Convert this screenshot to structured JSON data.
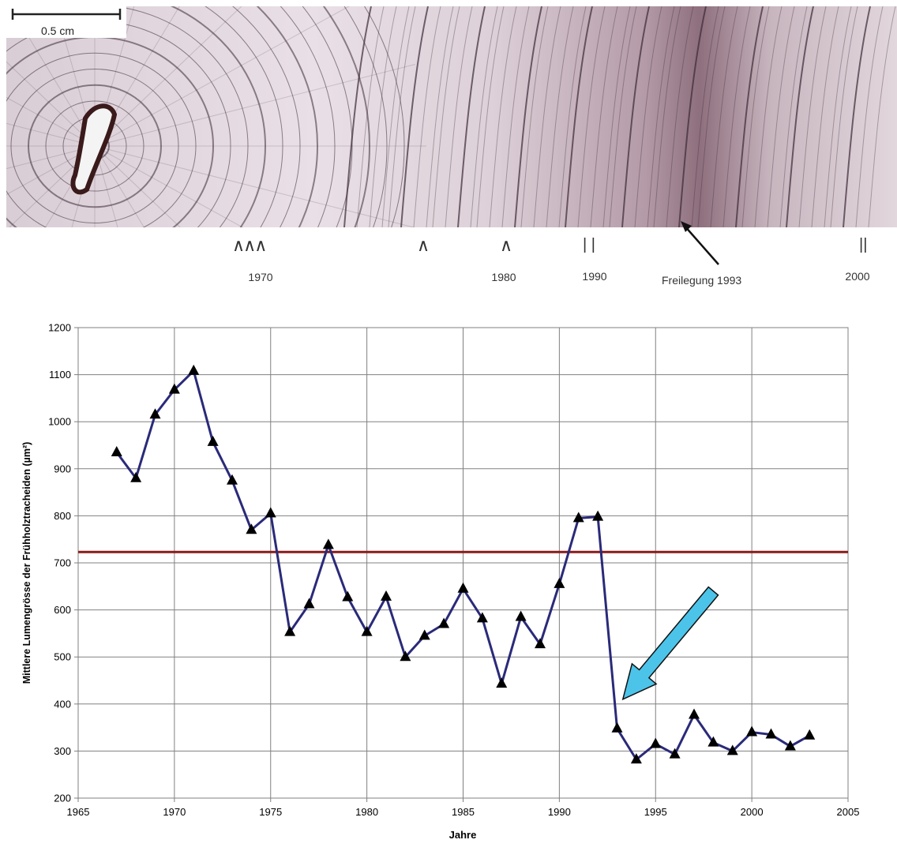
{
  "wood_image": {
    "scale_label": "0.5 cm",
    "year_marks": [
      {
        "label": "1970",
        "symbol": "∧∧∧"
      },
      {
        "label": "",
        "symbol": "∧"
      },
      {
        "label": "1980",
        "symbol": "∧"
      },
      {
        "label": "1990",
        "symbol": "| |"
      },
      {
        "label": "Freilegung 1993",
        "symbol": ""
      },
      {
        "label": "2000",
        "symbol": "||"
      }
    ],
    "colors": {
      "wood_light": "#e6dde4",
      "wood_dark": "#8b6a78",
      "ring_line": "#3a2a36",
      "pith": "#2a1a1a"
    }
  },
  "chart_data": {
    "type": "line",
    "title": "",
    "xlabel": "Jahre",
    "ylabel": "Mittlere Lumengrösse der Frühholztracheiden (µm²)",
    "xlim": [
      1965,
      2005
    ],
    "ylim": [
      200,
      1200
    ],
    "xticks": [
      1965,
      1970,
      1975,
      1980,
      1985,
      1990,
      1995,
      2000,
      2005
    ],
    "yticks": [
      200,
      300,
      400,
      500,
      600,
      700,
      800,
      900,
      1000,
      1100,
      1200
    ],
    "grid": true,
    "marker": "triangle",
    "reference_line": {
      "y": 723,
      "color": "#8b1a1a"
    },
    "annotation_arrow": {
      "color": "#4cc4ea",
      "from": [
        1998,
        640
      ],
      "to": [
        1993.3,
        410
      ]
    },
    "series": [
      {
        "name": "",
        "color": "#2a2a7a",
        "x": [
          1967,
          1968,
          1969,
          1970,
          1971,
          1972,
          1973,
          1974,
          1975,
          1976,
          1977,
          1978,
          1979,
          1980,
          1981,
          1982,
          1983,
          1984,
          1985,
          1986,
          1987,
          1988,
          1989,
          1990,
          1991,
          1992,
          1993,
          1994,
          1995,
          1996,
          1997,
          1998,
          1999,
          2000,
          2001,
          2002,
          2003
        ],
        "y": [
          935,
          880,
          1015,
          1068,
          1108,
          957,
          875,
          770,
          805,
          553,
          612,
          738,
          627,
          553,
          628,
          500,
          545,
          570,
          645,
          582,
          443,
          585,
          527,
          655,
          795,
          798,
          348,
          282,
          315,
          293,
          377,
          318,
          300,
          340,
          335,
          310,
          333
        ]
      }
    ]
  }
}
